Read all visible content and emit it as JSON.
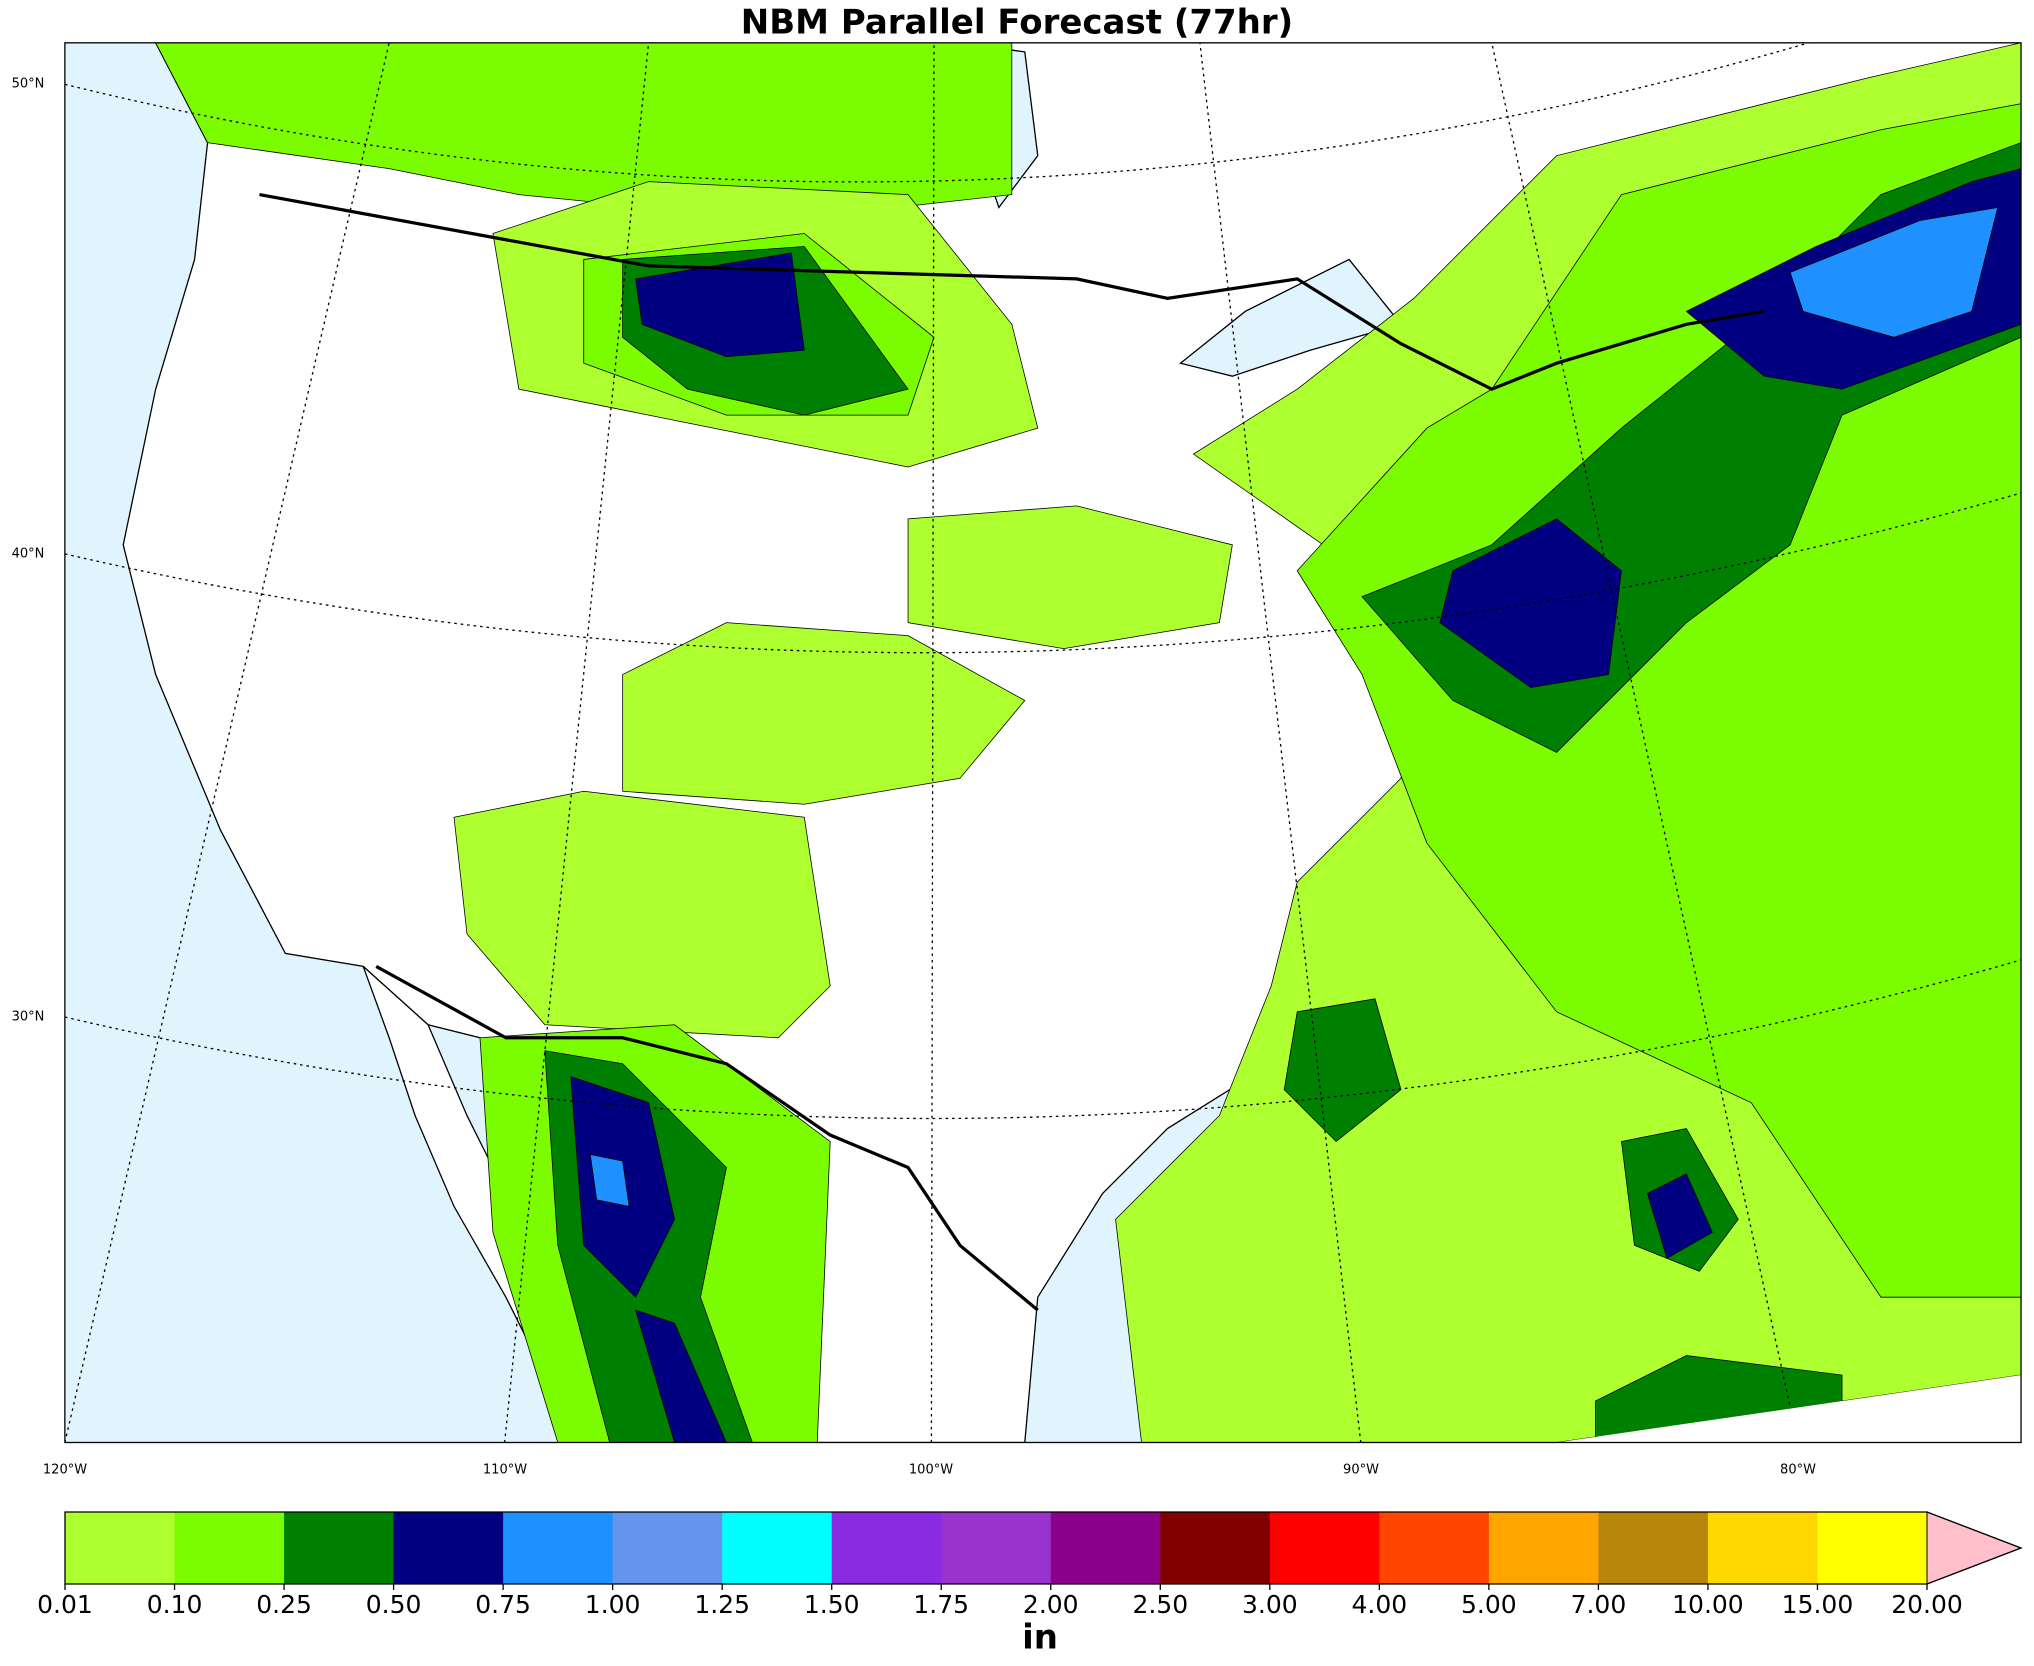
{
  "map": {
    "title": "NBM Parallel Forecast (77hr)",
    "lat_labels": [
      "50°N",
      "40°N",
      "30°N"
    ],
    "lon_labels": [
      "120°W",
      "110°W",
      "100°W",
      "90°W",
      "80°W"
    ],
    "colorbar": {
      "levels": [
        {
          "value": 0.01,
          "label": "0.01"
        },
        {
          "value": 0.1,
          "label": "0.10"
        },
        {
          "value": 0.25,
          "label": "0.25"
        },
        {
          "value": 0.5,
          "label": "0.50"
        },
        {
          "value": 0.75,
          "label": "0.75"
        },
        {
          "value": 1,
          "label": "1.00"
        },
        {
          "value": 1.25,
          "label": "1.25"
        },
        {
          "value": 1.5,
          "label": "1.50"
        },
        {
          "value": 1.75,
          "label": "1.75"
        },
        {
          "value": 2,
          "label": "2.00"
        },
        {
          "value": 2.5,
          "label": "2.50"
        },
        {
          "value": 3,
          "label": "3.00"
        },
        {
          "value": 4,
          "label": "4.00"
        },
        {
          "value": 5,
          "label": "5.00"
        },
        {
          "value": 7,
          "label": "7.00"
        },
        {
          "value": 10,
          "label": "10.00"
        },
        {
          "value": 15,
          "label": "15.00"
        },
        {
          "value": 20,
          "label": "20.00"
        }
      ],
      "colors": [
        "#adff2f",
        "#7cfc00",
        "#008000",
        "#000080",
        "#1e90ff",
        "#6495ed",
        "#00ffff",
        "#8a2be2",
        "#9932cc",
        "#8b008b",
        "#800000",
        "#ff0000",
        "#ff4500",
        "#ffa500",
        "#b8860b",
        "#ffd700",
        "#ffff00"
      ],
      "extend_color": "#ffc0cb",
      "unit": "in"
    }
  }
}
